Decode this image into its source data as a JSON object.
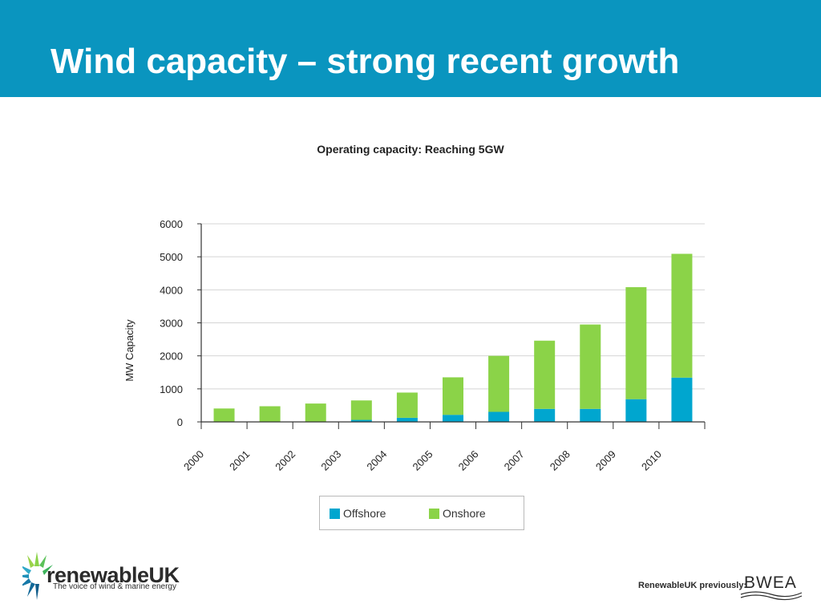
{
  "slide": {
    "title": "Wind capacity – strong recent growth"
  },
  "chart_data": {
    "type": "bar",
    "stacked": true,
    "title": "Operating capacity: Reaching 5GW",
    "xlabel": "",
    "ylabel": "MW Capacity",
    "categories": [
      "2000",
      "2001",
      "2002",
      "2003",
      "2004",
      "2005",
      "2006",
      "2007",
      "2008",
      "2009",
      "2010"
    ],
    "series": [
      {
        "name": "Offshore",
        "color": "#00a6cf",
        "values": [
          0,
          4,
          4,
          60,
          124,
          214,
          304,
          394,
          394,
          688,
          1341
        ]
      },
      {
        "name": "Onshore",
        "color": "#8bd348",
        "values": [
          406,
          470,
          552,
          590,
          764,
          1136,
          1696,
          2066,
          2556,
          3392,
          3749
        ]
      }
    ],
    "ylim": [
      0,
      6000
    ],
    "yticks": [
      0,
      1000,
      2000,
      3000,
      4000,
      5000,
      6000
    ],
    "grid": true,
    "legend_position": "bottom"
  },
  "footer": {
    "logo_name": "renewableUK",
    "logo_tagline": "The voice of wind & marine energy",
    "previously_label": "RenewableUK previously:",
    "previous_brand": "BWEA"
  }
}
